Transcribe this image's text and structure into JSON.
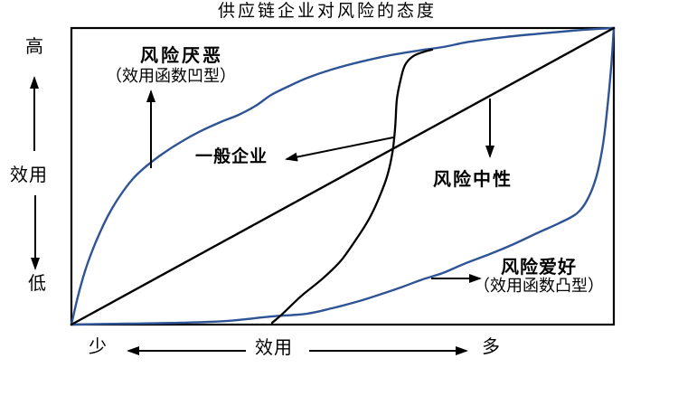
{
  "title": "供应链企业对风险的态度",
  "axes": {
    "y": {
      "high": "高",
      "label": "效用",
      "low": "低"
    },
    "x": {
      "left": "少",
      "label": "效用",
      "right": "多"
    }
  },
  "annotations": {
    "risk_averse": {
      "title": "风险厌恶",
      "subtitle": "（效用函数凹型）"
    },
    "general_firm": {
      "title": "一般企业"
    },
    "risk_neutral": {
      "title": "风险中性"
    },
    "risk_loving": {
      "title": "风险爱好",
      "subtitle": "（效用函数凸型）"
    }
  },
  "colors": {
    "curve_blue": "#2f5496",
    "ink": "#000000",
    "background": "#ffffff"
  },
  "chart_data": {
    "type": "line",
    "title": "供应链企业对风险的态度",
    "xlabel": "效用",
    "x_left_label": "少",
    "x_right_label": "多",
    "ylabel": "效用",
    "y_top_label": "高",
    "y_bottom_label": "低",
    "grid": false,
    "legend": "none (labels annotated with arrows inside plot)",
    "axis_ranges": "qualitative, normalized 0-1 both axes",
    "series": [
      {
        "id": "risk_averse",
        "name": "风险厌恶（效用函数凹型）",
        "style": "concave hand-drawn curve from bottom-left to top-right corner",
        "color_key": "curve_blue",
        "points": [
          [
            0,
            0
          ],
          [
            0.012,
            0.095
          ],
          [
            0.025,
            0.18
          ],
          [
            0.038,
            0.247
          ],
          [
            0.052,
            0.308
          ],
          [
            0.068,
            0.369
          ],
          [
            0.088,
            0.43
          ],
          [
            0.113,
            0.491
          ],
          [
            0.138,
            0.534
          ],
          [
            0.168,
            0.576
          ],
          [
            0.202,
            0.616
          ],
          [
            0.238,
            0.652
          ],
          [
            0.275,
            0.683
          ],
          [
            0.308,
            0.707
          ],
          [
            0.34,
            0.738
          ],
          [
            0.368,
            0.774
          ],
          [
            0.402,
            0.805
          ],
          [
            0.435,
            0.832
          ],
          [
            0.48,
            0.86
          ],
          [
            0.535,
            0.887
          ],
          [
            0.59,
            0.909
          ],
          [
            0.64,
            0.924
          ],
          [
            0.685,
            0.936
          ],
          [
            0.735,
            0.954
          ],
          [
            0.802,
            0.97
          ],
          [
            0.868,
            0.982
          ],
          [
            0.923,
            0.991
          ],
          [
            0.968,
            0.997
          ],
          [
            1,
            1
          ]
        ]
      },
      {
        "id": "risk_neutral",
        "name": "风险中性",
        "style": "straight diagonal line corner to corner",
        "color_key": "ink",
        "smooth": false,
        "points": [
          [
            0,
            0
          ],
          [
            1,
            1
          ]
        ]
      },
      {
        "id": "general_firm",
        "name": "一般企业",
        "style": "S-shaped curve in middle of plot",
        "color_key": "ink",
        "points": [
          [
            0.37,
            0.006
          ],
          [
            0.388,
            0.034
          ],
          [
            0.423,
            0.095
          ],
          [
            0.463,
            0.155
          ],
          [
            0.497,
            0.216
          ],
          [
            0.527,
            0.293
          ],
          [
            0.548,
            0.354
          ],
          [
            0.565,
            0.418
          ],
          [
            0.582,
            0.5
          ],
          [
            0.592,
            0.582
          ],
          [
            0.597,
            0.668
          ],
          [
            0.6,
            0.759
          ],
          [
            0.607,
            0.826
          ],
          [
            0.615,
            0.875
          ],
          [
            0.63,
            0.905
          ],
          [
            0.652,
            0.921
          ],
          [
            0.665,
            0.927
          ]
        ]
      },
      {
        "id": "risk_loving",
        "name": "风险爱好（效用函数凸型）",
        "style": "convex hand-drawn curve from bottom-left to top-right corner",
        "color_key": "curve_blue",
        "points": [
          [
            0,
            0
          ],
          [
            0.102,
            0.003
          ],
          [
            0.202,
            0.006
          ],
          [
            0.285,
            0.012
          ],
          [
            0.368,
            0.027
          ],
          [
            0.435,
            0.037
          ],
          [
            0.48,
            0.055
          ],
          [
            0.53,
            0.079
          ],
          [
            0.568,
            0.101
          ],
          [
            0.607,
            0.125
          ],
          [
            0.647,
            0.152
          ],
          [
            0.685,
            0.174
          ],
          [
            0.727,
            0.207
          ],
          [
            0.772,
            0.238
          ],
          [
            0.815,
            0.271
          ],
          [
            0.858,
            0.308
          ],
          [
            0.898,
            0.341
          ],
          [
            0.932,
            0.375
          ],
          [
            0.952,
            0.424
          ],
          [
            0.968,
            0.5
          ],
          [
            0.98,
            0.607
          ],
          [
            0.988,
            0.729
          ],
          [
            0.995,
            0.866
          ],
          [
            1,
            1
          ]
        ]
      }
    ]
  },
  "arrows": [
    {
      "name": "y-axis-up-arrow",
      "from": [
        38,
        167
      ],
      "to": [
        38,
        86
      ]
    },
    {
      "name": "y-axis-down-arrow",
      "from": [
        39,
        216
      ],
      "to": [
        39,
        297
      ]
    },
    {
      "name": "x-axis-left-arrow",
      "from": [
        272,
        388
      ],
      "to": [
        142,
        388
      ]
    },
    {
      "name": "x-axis-right-arrow",
      "from": [
        342,
        388
      ],
      "to": [
        516,
        388
      ]
    },
    {
      "name": "risk-averse-pointer-arrow",
      "from": [
        167,
        186
      ],
      "to": [
        167,
        101
      ]
    },
    {
      "name": "general-firm-pointer-arrow",
      "from": [
        435,
        152
      ],
      "to": [
        317,
        176
      ]
    },
    {
      "name": "risk-neutral-pointer-arrow",
      "from": [
        542,
        109
      ],
      "to": [
        542,
        173
      ]
    },
    {
      "name": "risk-loving-pointer-arrow",
      "from": [
        477,
        308
      ],
      "to": [
        531,
        308
      ]
    }
  ]
}
